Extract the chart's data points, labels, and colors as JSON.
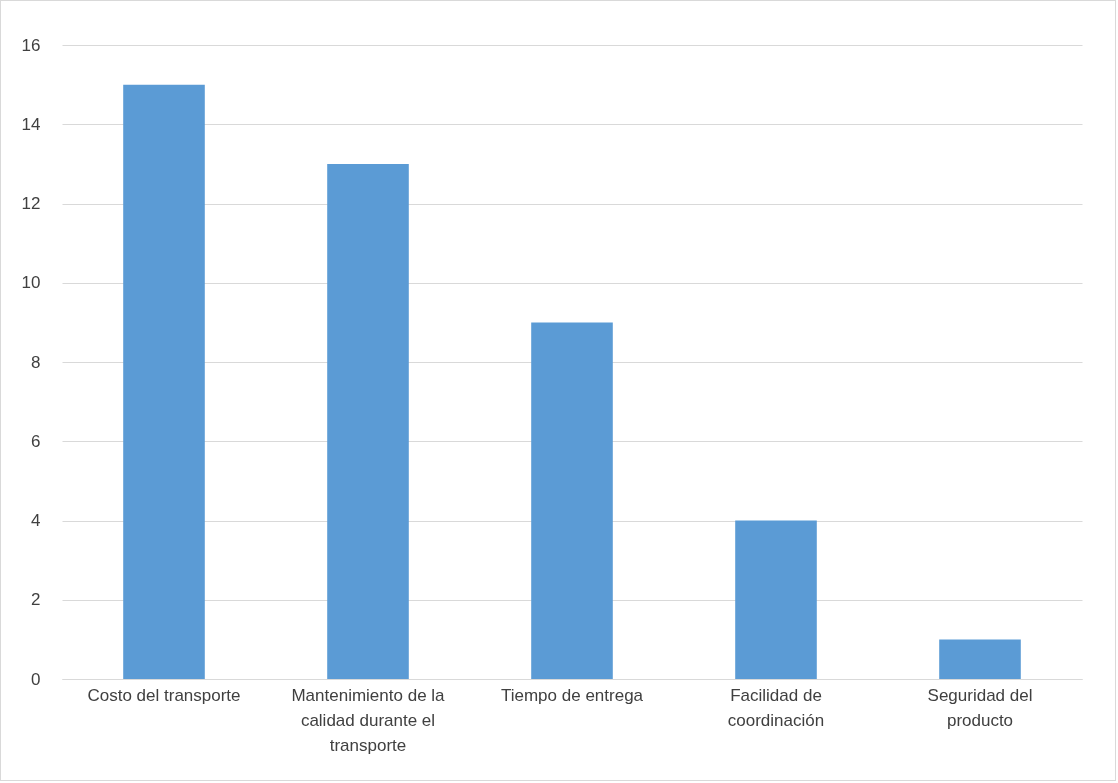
{
  "chart_data": {
    "type": "bar",
    "categories": [
      "Costo del transporte",
      "Mantenimiento de la calidad durante el transporte",
      "Tiempo de entrega",
      "Facilidad de coordinación",
      "Seguridad del producto"
    ],
    "values": [
      15,
      13,
      9,
      4,
      1
    ],
    "color": "#5b9bd5",
    "ylim": [
      0,
      16
    ],
    "yticks": [
      0,
      2,
      4,
      6,
      8,
      10,
      12,
      14,
      16
    ],
    "grid": "y"
  }
}
